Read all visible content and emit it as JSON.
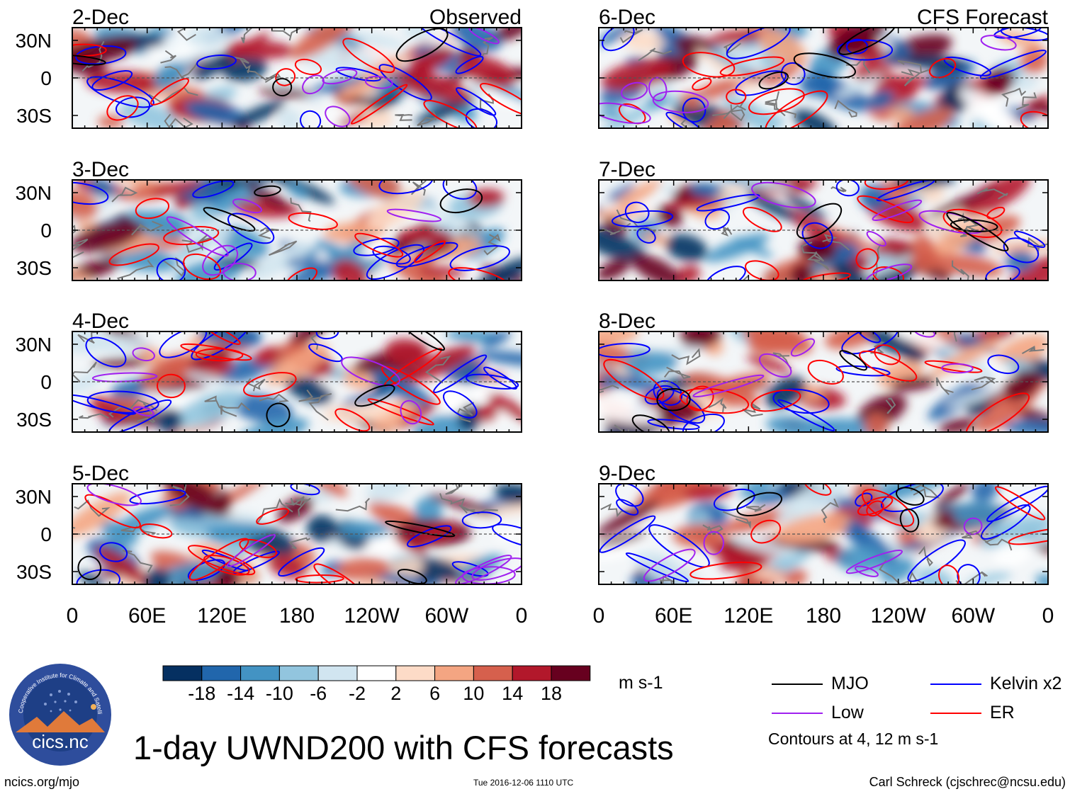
{
  "title": "1-day UWND200 with CFS forecasts",
  "footer": {
    "left": "ncics.org/mjo",
    "timestamp": "Tue 2016-12-06 1110 UTC",
    "author": "Carl Schreck (cjschrec@ncsu.edu)"
  },
  "logo": {
    "text": "cics.nc",
    "ring_text": "Cooperative Institute for Climate and Satellites",
    "colors": {
      "ring": "#2e4d9c",
      "inner": "#1e3f86",
      "mountain": "#e07a3a"
    }
  },
  "colorbar": {
    "units": "m s-1",
    "tick_labels": [
      "-18",
      "-14",
      "-10",
      "-6",
      "-2",
      "2",
      "6",
      "10",
      "14",
      "18"
    ],
    "colors": [
      "#053061",
      "#2166ac",
      "#4393c3",
      "#92c5de",
      "#d1e5f0",
      "#ffffff",
      "#fddbc7",
      "#f4a582",
      "#d6604d",
      "#b2182b",
      "#67001f"
    ]
  },
  "legend": {
    "items": [
      {
        "name": "MJO",
        "color": "#000000"
      },
      {
        "name": "Kelvin x2",
        "color": "#0000ff"
      },
      {
        "name": "Low",
        "color": "#a020f0"
      },
      {
        "name": "ER",
        "color": "#ff0000"
      }
    ],
    "note": "Contours at 4, 12 m s-1"
  },
  "chart_data": {
    "type": "heatmap",
    "variable": "200-hPa zonal wind anomaly (UWND200)",
    "units": "m s-1",
    "columns": [
      {
        "header": "Observed",
        "panels": [
          "2-Dec",
          "3-Dec",
          "4-Dec",
          "5-Dec"
        ]
      },
      {
        "header": "CFS Forecast",
        "panels": [
          "6-Dec",
          "7-Dec",
          "8-Dec",
          "9-Dec"
        ]
      }
    ],
    "x_tick_labels": [
      "0",
      "60E",
      "120E",
      "180",
      "120W",
      "60W",
      "0"
    ],
    "y_tick_labels": [
      "30N",
      "0",
      "30S"
    ],
    "x_range_deg": [
      0,
      360
    ],
    "y_range_deg": [
      -40,
      40
    ],
    "contour_levels": [
      4,
      12
    ],
    "contour_fields": [
      "MJO",
      "Kelvin x2",
      "Low",
      "ER"
    ]
  }
}
